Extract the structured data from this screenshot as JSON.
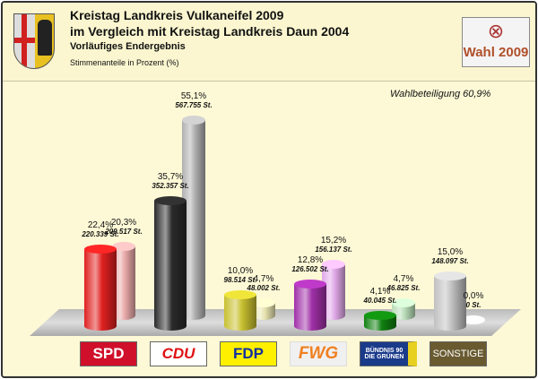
{
  "header": {
    "title1": "Kreistag Landkreis Vulkaneifel 2009",
    "title2": "im Vergleich mit Kreistag Landkreis Daun 2004",
    "subtitle": "Vorläufiges Endergebnis",
    "note": "Stimmenanteile in Prozent (%)",
    "badge": "Wahl 2009"
  },
  "chart_data": {
    "type": "bar",
    "title": "Kreistag Landkreis Vulkaneifel 2009",
    "ylabel": "Stimmenanteile in Prozent (%)",
    "turnout": "Wahlbeteiligung 60,9%",
    "categories": [
      "SPD",
      "CDU",
      "FDP",
      "FWG",
      "BÜNDNIS 90 DIE GRÜNEN",
      "SONSTIGE"
    ],
    "series": [
      {
        "name": "2009",
        "values": [
          22.4,
          35.7,
          10.0,
          12.8,
          4.1,
          15.0
        ],
        "labels": [
          "22,4%",
          "35,7%",
          "10,0%",
          "12,8%",
          "4,1%",
          "15,0%"
        ],
        "votes": [
          "220.339 St.",
          "352.357 St.",
          "98.514 St.",
          "126.502 St.",
          "40.045 St.",
          "148.097 St."
        ]
      },
      {
        "name": "2004",
        "values": [
          20.3,
          55.1,
          4.7,
          15.2,
          4.7,
          0.0
        ],
        "labels": [
          "20,3%",
          "55,1%",
          "4,7%",
          "15,2%",
          "4,7%",
          "0,0%"
        ],
        "votes": [
          "209.517 St.",
          "567.755 St.",
          "48.002 St.",
          "156.137 St.",
          "46.825 St.",
          "0 St."
        ]
      }
    ],
    "colors_2009": [
      "#e02020",
      "#2a2a2a",
      "#c8c030",
      "#a030a8",
      "#108010",
      "#c0c0c0"
    ],
    "colors_2004": [
      "#e8a8a8",
      "#b0b0b0",
      "#e8e4b0",
      "#e0a8e8",
      "#b8dcb8",
      "#e0e0e0"
    ]
  }
}
